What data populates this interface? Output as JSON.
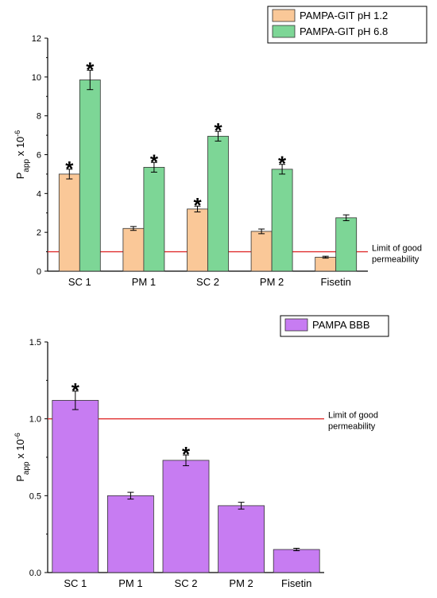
{
  "chart_data": [
    {
      "type": "bar",
      "ylabel_main": "P",
      "ylabel_sub": "app",
      "ylabel_mid": " x 10",
      "ylabel_sup": "-6",
      "categories": [
        "SC 1",
        "PM 1",
        "SC  2",
        "PM 2",
        "Fisetin"
      ],
      "ylim": [
        0,
        12
      ],
      "yticks": [
        0,
        2,
        4,
        6,
        8,
        10,
        12
      ],
      "series": [
        {
          "name": "PAMPA-GIT pH 1.2",
          "color": "#fac898",
          "values": [
            5.0,
            2.2,
            3.2,
            2.05,
            0.72
          ],
          "errors": [
            0.25,
            0.1,
            0.15,
            0.12,
            0.05
          ],
          "significant": [
            true,
            false,
            true,
            false,
            false
          ]
        },
        {
          "name": "PAMPA-GIT pH 6.8",
          "color": "#7dd696",
          "values": [
            9.85,
            5.35,
            6.95,
            5.25,
            2.75
          ],
          "errors": [
            0.5,
            0.25,
            0.25,
            0.25,
            0.15
          ],
          "significant": [
            true,
            true,
            true,
            true,
            false
          ]
        }
      ],
      "threshold": {
        "value": 1.0,
        "label_line1": "Limit of good",
        "label_line2": "permeability",
        "color": "#e03030"
      },
      "significance_marker": "*",
      "legend": "top-right"
    },
    {
      "type": "bar",
      "ylabel_main": "P",
      "ylabel_sub": "app",
      "ylabel_mid": " x 10",
      "ylabel_sup": "-6",
      "categories": [
        "SC 1",
        "PM 1",
        "SC 2",
        "PM 2",
        "Fisetin"
      ],
      "ylim": [
        0,
        1.5
      ],
      "yticks": [
        "0.0",
        "0.5",
        "1.0",
        "1.5"
      ],
      "series": [
        {
          "name": "PAMPA BBB",
          "color": "#c77cf2",
          "values": [
            1.12,
            0.5,
            0.73,
            0.435,
            0.15
          ],
          "errors": [
            0.06,
            0.022,
            0.035,
            0.022,
            0.008
          ],
          "significant": [
            true,
            false,
            true,
            false,
            false
          ]
        }
      ],
      "threshold": {
        "value": 1.0,
        "label_line1": "Limit of good",
        "label_line2": "permeability",
        "color": "#e03030"
      },
      "significance_marker": "*",
      "legend": "top-right"
    }
  ]
}
